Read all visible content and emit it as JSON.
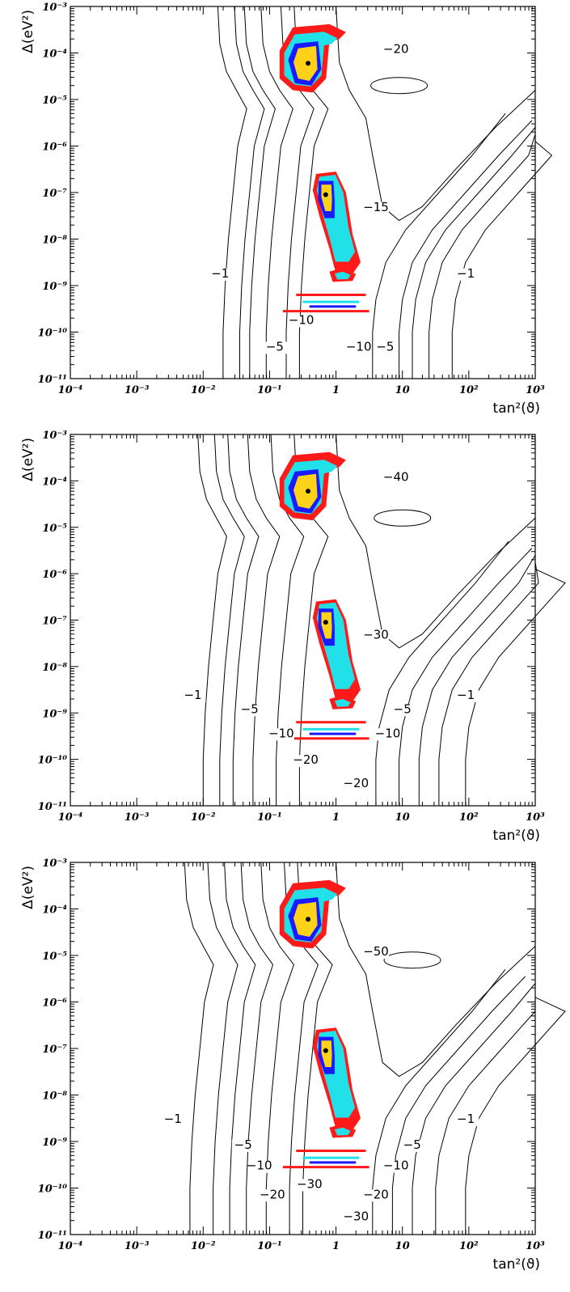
{
  "colors": {
    "red": "#ff1a1a",
    "cyan": "#22e0e8",
    "blue": "#1a1aff",
    "yellow": "#ffd21a",
    "black": "#000000"
  },
  "chart_data": [
    {
      "type": "contour",
      "xlabel": "tan²(ϑ)",
      "ylabel": "Δ(eV²)",
      "xscale": "log",
      "yscale": "log",
      "xlim": [
        0.0001,
        1000
      ],
      "ylim": [
        1e-11,
        0.001
      ],
      "x_ticks": [
        "10⁻⁴",
        "10⁻³",
        "10⁻²",
        "10⁻¹",
        "1",
        "10",
        "10²",
        "10³"
      ],
      "y_ticks": [
        "10⁻³",
        "10⁻⁴",
        "10⁻⁵",
        "10⁻⁶",
        "10⁻⁷",
        "10⁻⁸",
        "10⁻⁹",
        "10⁻¹⁰",
        "10⁻¹¹"
      ],
      "contour_labels": [
        {
          "text": "−20",
          "x": 8.0,
          "y": 0.0001
        },
        {
          "text": "−15",
          "x": 4.0,
          "y": 4e-08
        },
        {
          "text": "−1",
          "x": 0.018,
          "y": 1.5e-09
        },
        {
          "text": "−1",
          "x": 90,
          "y": 1.5e-09
        },
        {
          "text": "−10",
          "x": 0.3,
          "y": 1.5e-10
        },
        {
          "text": "−10",
          "x": 2.2,
          "y": 4e-11
        },
        {
          "text": "−5",
          "x": 0.12,
          "y": 4e-11
        },
        {
          "text": "−5",
          "x": 5.5,
          "y": 4e-11
        }
      ],
      "best_fit_points": [
        [
          0.38,
          6e-05
        ],
        [
          0.7,
          9e-08
        ]
      ]
    },
    {
      "type": "contour",
      "xlabel": "tan²(ϑ)",
      "ylabel": "Δ(eV²)",
      "xscale": "log",
      "yscale": "log",
      "xlim": [
        0.0001,
        1000
      ],
      "ylim": [
        1e-11,
        0.001
      ],
      "x_ticks": [
        "10⁻⁴",
        "10⁻³",
        "10⁻²",
        "10⁻¹",
        "1",
        "10",
        "10²",
        "10³"
      ],
      "y_ticks": [
        "10⁻³",
        "10⁻⁴",
        "10⁻⁵",
        "10⁻⁶",
        "10⁻⁷",
        "10⁻⁸",
        "10⁻⁹",
        "10⁻¹⁰",
        "10⁻¹¹"
      ],
      "contour_labels": [
        {
          "text": "−40",
          "x": 8.0,
          "y": 0.0001
        },
        {
          "text": "−30",
          "x": 4.0,
          "y": 4e-08
        },
        {
          "text": "−1",
          "x": 0.007,
          "y": 2e-09
        },
        {
          "text": "−1",
          "x": 90,
          "y": 2e-09
        },
        {
          "text": "−5",
          "x": 0.05,
          "y": 1e-09
        },
        {
          "text": "−5",
          "x": 10,
          "y": 1e-09
        },
        {
          "text": "−10",
          "x": 0.15,
          "y": 3e-10
        },
        {
          "text": "−10",
          "x": 6,
          "y": 3e-10
        },
        {
          "text": "−20",
          "x": 0.35,
          "y": 8e-11
        },
        {
          "text": "−20",
          "x": 2.0,
          "y": 2.5e-11
        }
      ],
      "best_fit_points": [
        [
          0.38,
          6e-05
        ],
        [
          0.7,
          9e-08
        ]
      ]
    },
    {
      "type": "contour",
      "xlabel": "tan²(ϑ)",
      "ylabel": "Δ(eV²)",
      "xscale": "log",
      "yscale": "log",
      "xlim": [
        0.0001,
        1000
      ],
      "ylim": [
        1e-11,
        0.001
      ],
      "x_ticks": [
        "10⁻⁴",
        "10⁻³",
        "10⁻²",
        "10⁻¹",
        "1",
        "10",
        "10²",
        "10³"
      ],
      "y_ticks": [
        "10⁻³",
        "10⁻⁴",
        "10⁻⁵",
        "10⁻⁶",
        "10⁻⁷",
        "10⁻⁸",
        "10⁻⁹",
        "10⁻¹⁰",
        "10⁻¹¹"
      ],
      "contour_labels": [
        {
          "text": "−50",
          "x": 4.0,
          "y": 1e-05
        },
        {
          "text": "−1",
          "x": 0.0035,
          "y": 2.5e-09
        },
        {
          "text": "−1",
          "x": 90,
          "y": 2.5e-09
        },
        {
          "text": "−5",
          "x": 0.04,
          "y": 7e-10
        },
        {
          "text": "−5",
          "x": 14,
          "y": 7e-10
        },
        {
          "text": "−10",
          "x": 0.07,
          "y": 2.5e-10
        },
        {
          "text": "−10",
          "x": 8,
          "y": 2.5e-10
        },
        {
          "text": "−20",
          "x": 0.11,
          "y": 6e-11
        },
        {
          "text": "−20",
          "x": 4.0,
          "y": 6e-11
        },
        {
          "text": "−30",
          "x": 0.4,
          "y": 1e-10
        },
        {
          "text": "−30",
          "x": 2.0,
          "y": 2e-11
        }
      ],
      "best_fit_points": [
        [
          0.38,
          6e-05
        ],
        [
          0.7,
          9e-08
        ]
      ]
    }
  ]
}
